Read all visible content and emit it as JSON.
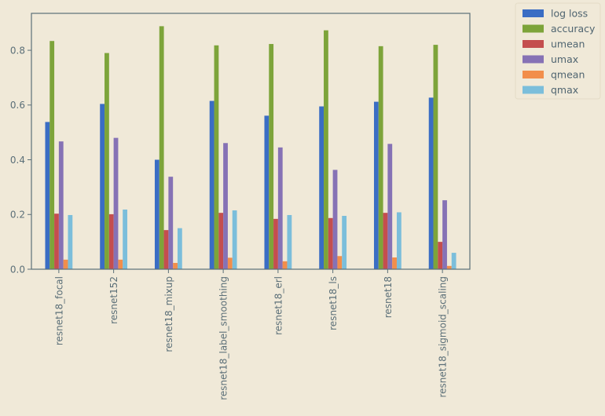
{
  "chart_data": {
    "type": "bar",
    "title": "",
    "xlabel": "",
    "ylabel": "",
    "categories": [
      "resnet18_focal",
      "resnet152",
      "resnet18_mixup",
      "resnet18_label_smoothing",
      "resnet18_erl",
      "resnet18_ls",
      "resnet18",
      "resnet18_sigmoid_scaling"
    ],
    "ylim": [
      0,
      0.935
    ],
    "yticks": [
      0.0,
      0.2,
      0.4,
      0.6,
      0.8
    ],
    "ytick_labels": [
      "0.0",
      "0.2",
      "0.4",
      "0.6",
      "0.8"
    ],
    "grid": false,
    "legend_position": "outside-top-right",
    "series": [
      {
        "name": "log loss",
        "color": "#3a6dc4",
        "values": [
          0.538,
          0.604,
          0.4,
          0.615,
          0.561,
          0.595,
          0.612,
          0.627
        ]
      },
      {
        "name": "accuracy",
        "color": "#7da43a",
        "values": [
          0.834,
          0.79,
          0.888,
          0.818,
          0.823,
          0.873,
          0.815,
          0.82
        ]
      },
      {
        "name": "umean",
        "color": "#c44e4e",
        "values": [
          0.203,
          0.201,
          0.143,
          0.206,
          0.184,
          0.187,
          0.206,
          0.1
        ]
      },
      {
        "name": "umax",
        "color": "#8672b5",
        "values": [
          0.467,
          0.48,
          0.338,
          0.461,
          0.445,
          0.363,
          0.458,
          0.252
        ]
      },
      {
        "name": "qmean",
        "color": "#f28e4b",
        "values": [
          0.035,
          0.035,
          0.023,
          0.042,
          0.029,
          0.048,
          0.043,
          0.012
        ]
      },
      {
        "name": "qmax",
        "color": "#7bbedb",
        "values": [
          0.198,
          0.218,
          0.15,
          0.215,
          0.198,
          0.195,
          0.208,
          0.06
        ]
      }
    ]
  }
}
